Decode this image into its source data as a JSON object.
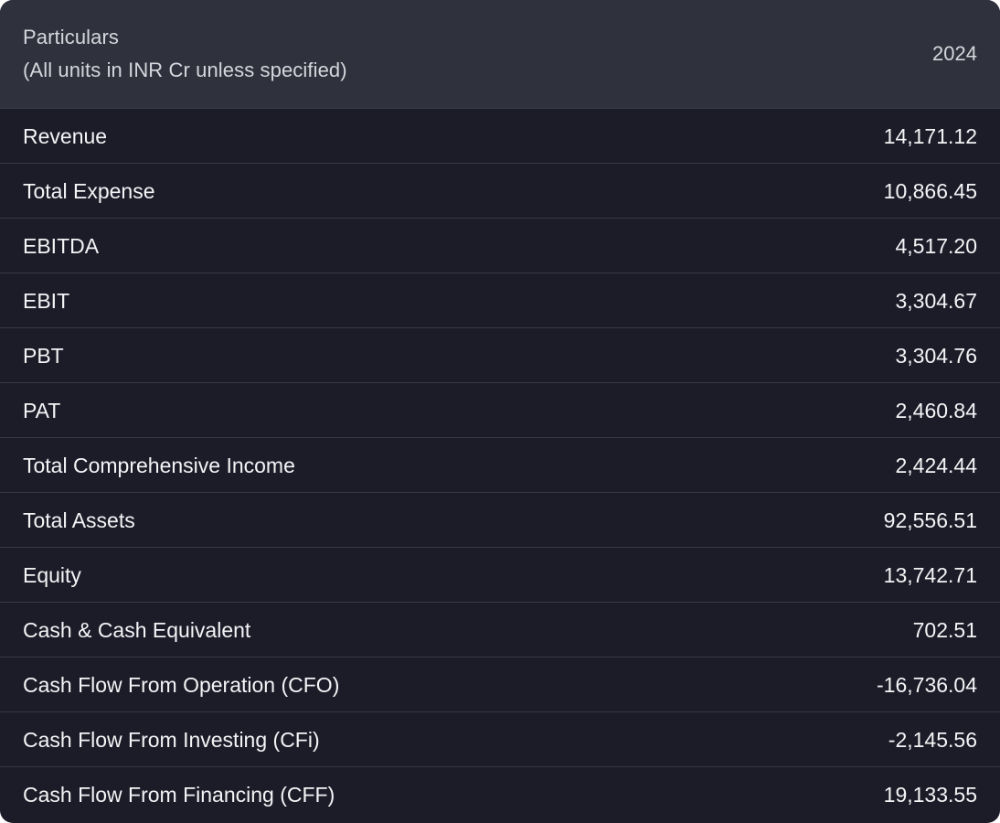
{
  "header": {
    "particulars_label": "Particulars",
    "units_note": "(All units in INR Cr unless specified)",
    "year": "2024"
  },
  "rows": [
    {
      "label": "Revenue",
      "value": "14,171.12"
    },
    {
      "label": "Total Expense",
      "value": "10,866.45"
    },
    {
      "label": "EBITDA",
      "value": "4,517.20"
    },
    {
      "label": "EBIT",
      "value": "3,304.67"
    },
    {
      "label": "PBT",
      "value": "3,304.76"
    },
    {
      "label": "PAT",
      "value": "2,460.84"
    },
    {
      "label": "Total Comprehensive Income",
      "value": "2,424.44"
    },
    {
      "label": "Total Assets",
      "value": "92,556.51"
    },
    {
      "label": "Equity",
      "value": "13,742.71"
    },
    {
      "label": "Cash & Cash Equivalent",
      "value": "702.51"
    },
    {
      "label": "Cash Flow From Operation (CFO)",
      "value": "-16,736.04"
    },
    {
      "label": "Cash Flow From Investing (CFi)",
      "value": "-2,145.56"
    },
    {
      "label": "Cash Flow From Financing (CFF)",
      "value": "19,133.55"
    }
  ]
}
